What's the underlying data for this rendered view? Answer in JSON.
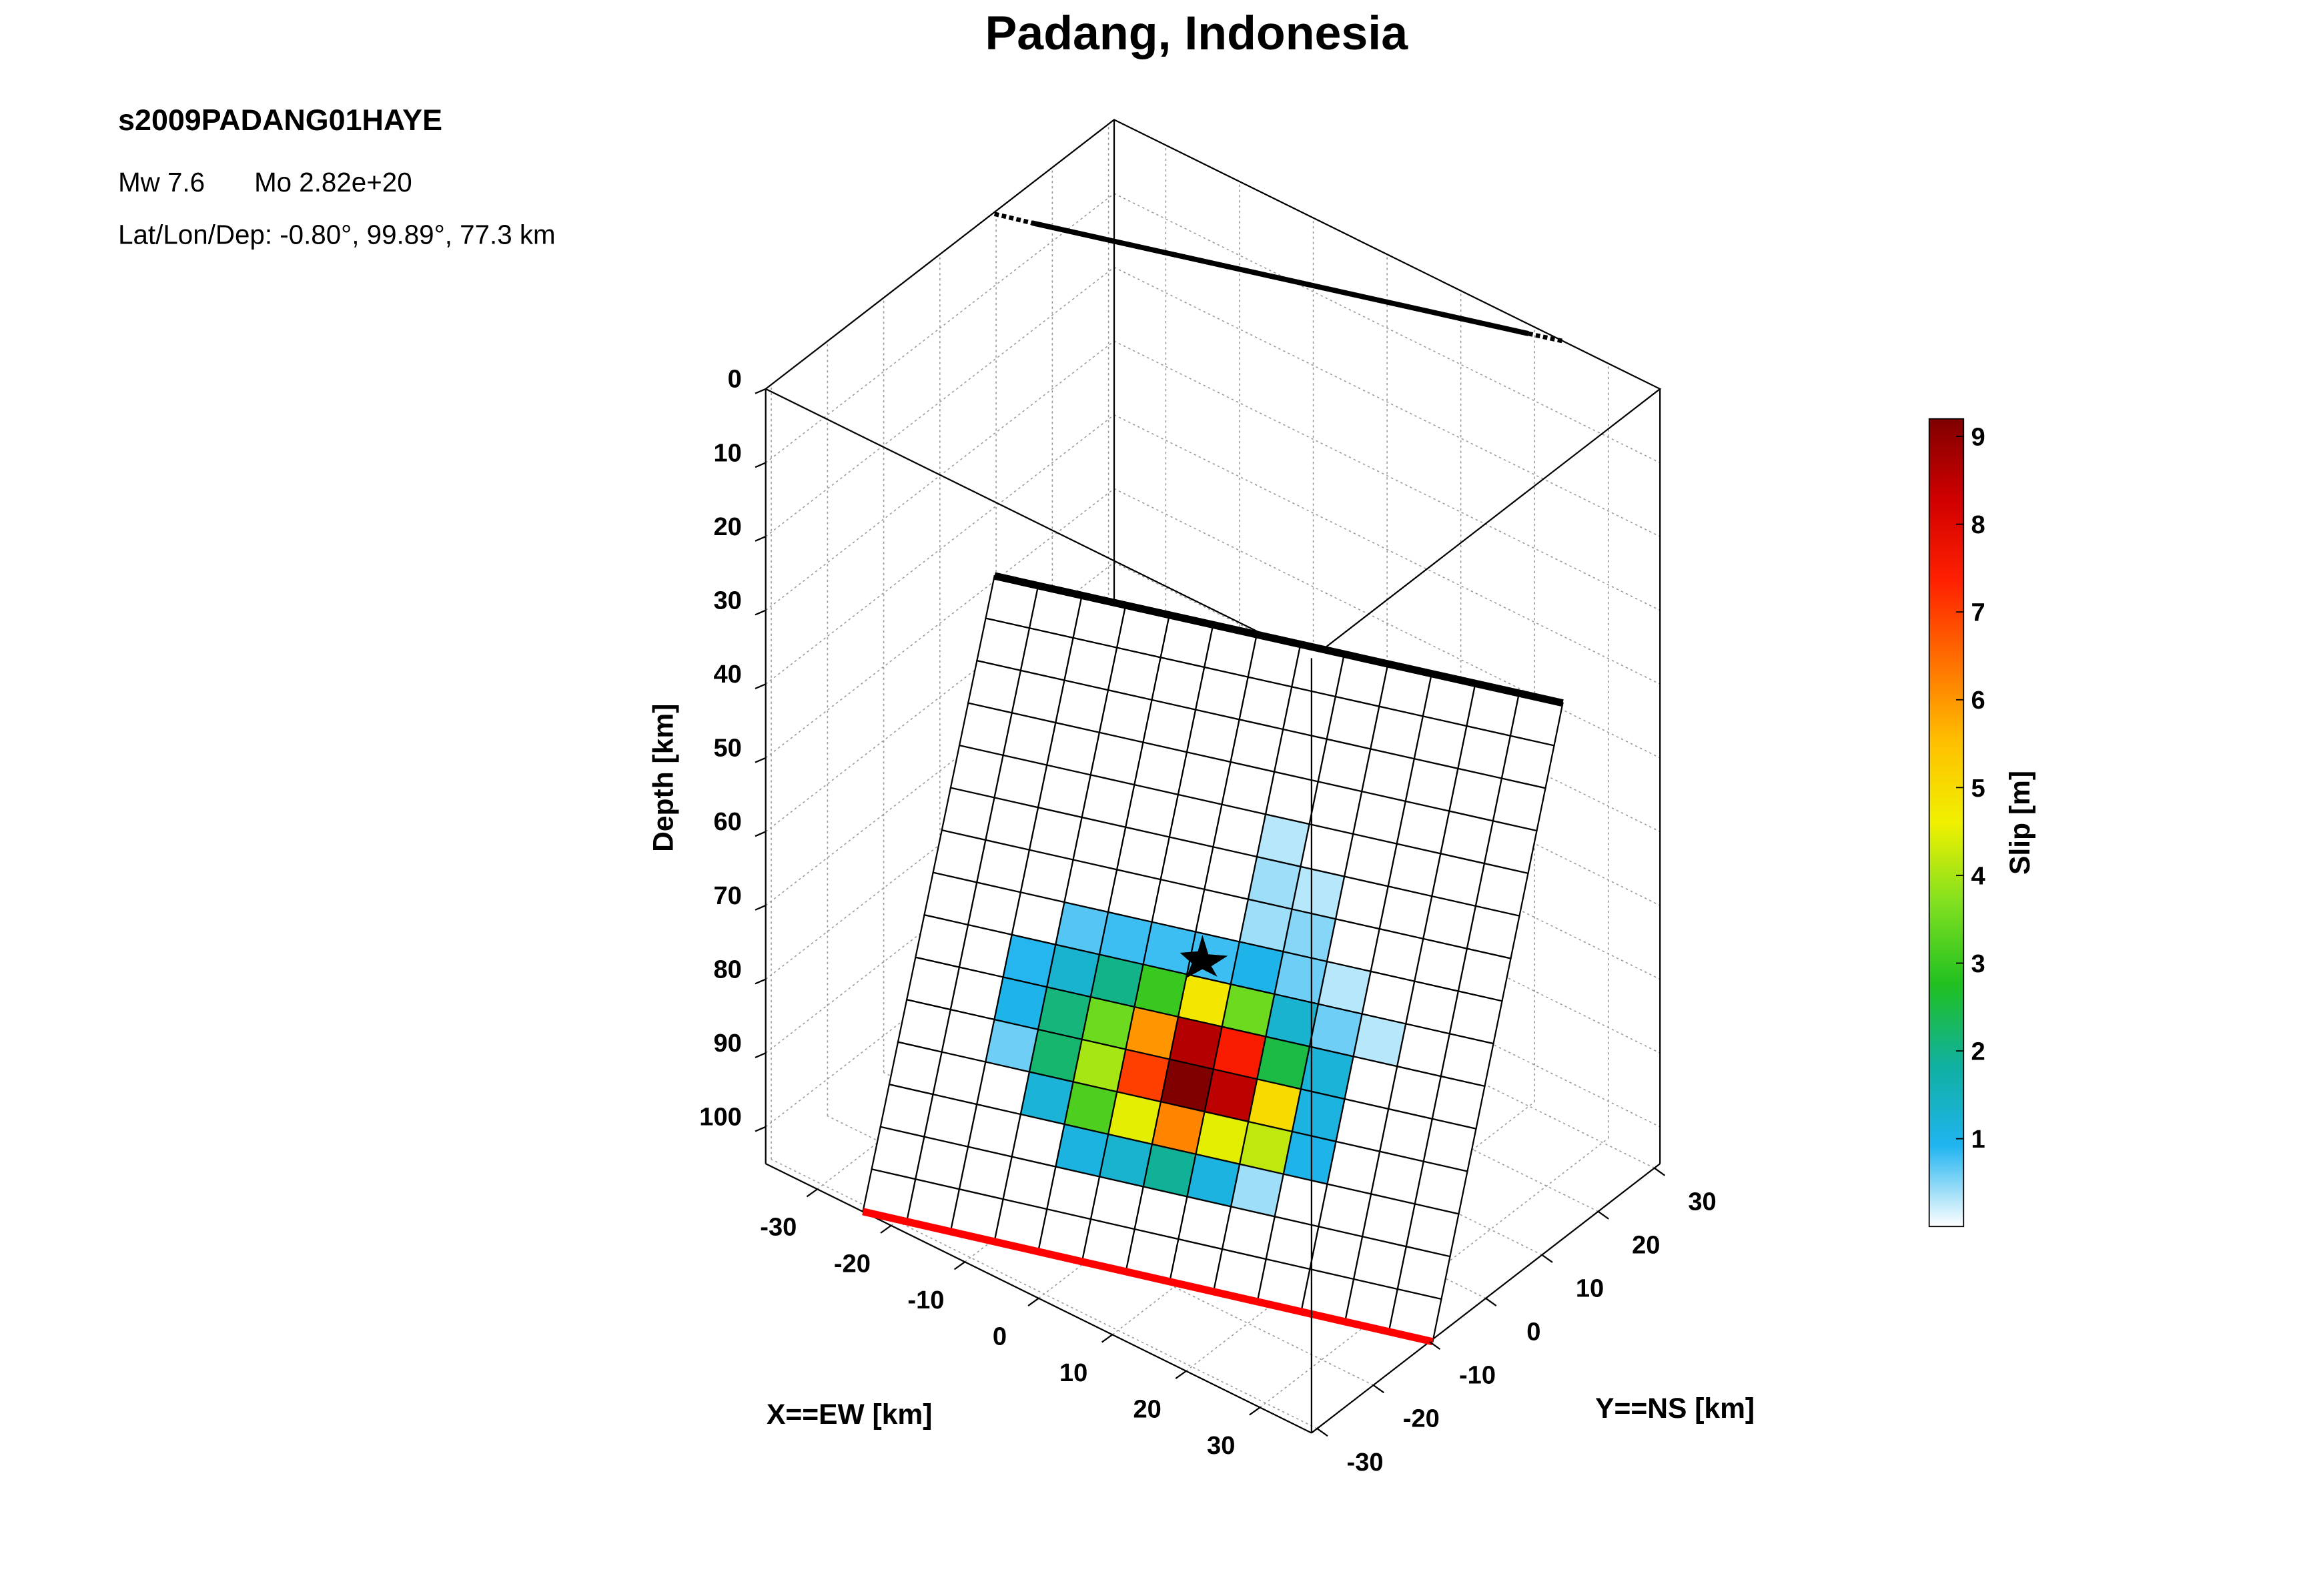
{
  "chart_data": {
    "type": "fault-slip-3d",
    "title": "Padang, Indonesia",
    "event_id": "s2009PADANG01HAYE",
    "magnitude": "Mw 7.6",
    "moment": "Mo 2.82e+20",
    "location": "Lat/Lon/Dep: -0.80°, 99.89°, 77.3 km",
    "xlabel": "X==EW [km]",
    "ylabel": "Y==NS [km]",
    "zlabel": "Depth [km]",
    "colorbar_label": "Slip [m]",
    "xlim": [
      -37,
      37
    ],
    "ylim": [
      -31,
      31
    ],
    "zlim": [
      0,
      105
    ],
    "xticks": [
      -30,
      -20,
      -10,
      0,
      10,
      20,
      30
    ],
    "yticks": [
      -30,
      -20,
      -10,
      0,
      10,
      20,
      30
    ],
    "zticks": [
      0,
      10,
      20,
      30,
      40,
      50,
      60,
      70,
      80,
      90,
      100
    ],
    "clim": [
      0,
      9.2
    ],
    "cticks": [
      1,
      2,
      3,
      4,
      5,
      6,
      7,
      8,
      9
    ],
    "colormap": [
      "#ffffff",
      "#20b4f0",
      "#10b0a0",
      "#20c020",
      "#80e020",
      "#f0f000",
      "#ffc000",
      "#ff7000",
      "#ff2000",
      "#d00000",
      "#800000"
    ],
    "grid": true,
    "slip": [
      [
        0,
        0,
        0,
        0,
        0,
        0,
        0,
        0,
        0,
        0,
        0,
        0,
        0
      ],
      [
        0,
        0,
        0,
        0,
        0,
        0,
        0,
        0,
        0,
        0,
        0,
        0,
        0
      ],
      [
        0,
        0,
        0,
        0,
        0,
        0,
        0,
        0,
        0,
        0,
        0,
        0,
        0
      ],
      [
        0,
        0,
        0,
        0,
        0,
        0,
        0,
        0,
        0,
        0,
        0,
        0,
        0
      ],
      [
        0,
        0,
        0,
        0,
        0,
        0,
        0,
        0.3,
        0,
        0,
        0,
        0,
        0
      ],
      [
        0,
        0,
        0,
        0,
        0,
        0,
        0,
        0.4,
        0.3,
        0,
        0,
        0,
        0
      ],
      [
        0,
        0,
        0,
        0,
        0,
        0,
        0,
        0.4,
        0.5,
        0,
        0,
        0,
        0
      ],
      [
        0,
        0,
        0,
        0.7,
        0.8,
        0.8,
        0.8,
        1.0,
        0.6,
        0.3,
        0,
        0,
        0
      ],
      [
        0,
        0,
        0.9,
        1.3,
        2.0,
        3.0,
        4.8,
        3.5,
        1.3,
        0.6,
        0.3,
        0,
        0
      ],
      [
        0,
        0,
        1.0,
        2.1,
        3.5,
        6.0,
        8.6,
        7.5,
        2.5,
        1.2,
        0,
        0,
        0
      ],
      [
        0,
        0,
        0.6,
        2.2,
        4.0,
        7.0,
        9.2,
        8.5,
        5.0,
        1.1,
        0,
        0,
        0
      ],
      [
        0,
        0,
        0,
        1.2,
        3.2,
        4.5,
        6.2,
        4.5,
        4.2,
        1.0,
        0,
        0,
        0
      ],
      [
        0,
        0,
        0,
        0,
        1.1,
        1.3,
        1.9,
        1.1,
        0.4,
        0,
        0,
        0,
        0
      ],
      [
        0,
        0,
        0,
        0,
        0,
        0,
        0,
        0,
        0,
        0,
        0,
        0,
        0
      ],
      [
        0,
        0,
        0,
        0,
        0,
        0,
        0,
        0,
        0,
        0,
        0,
        0,
        0
      ]
    ]
  }
}
